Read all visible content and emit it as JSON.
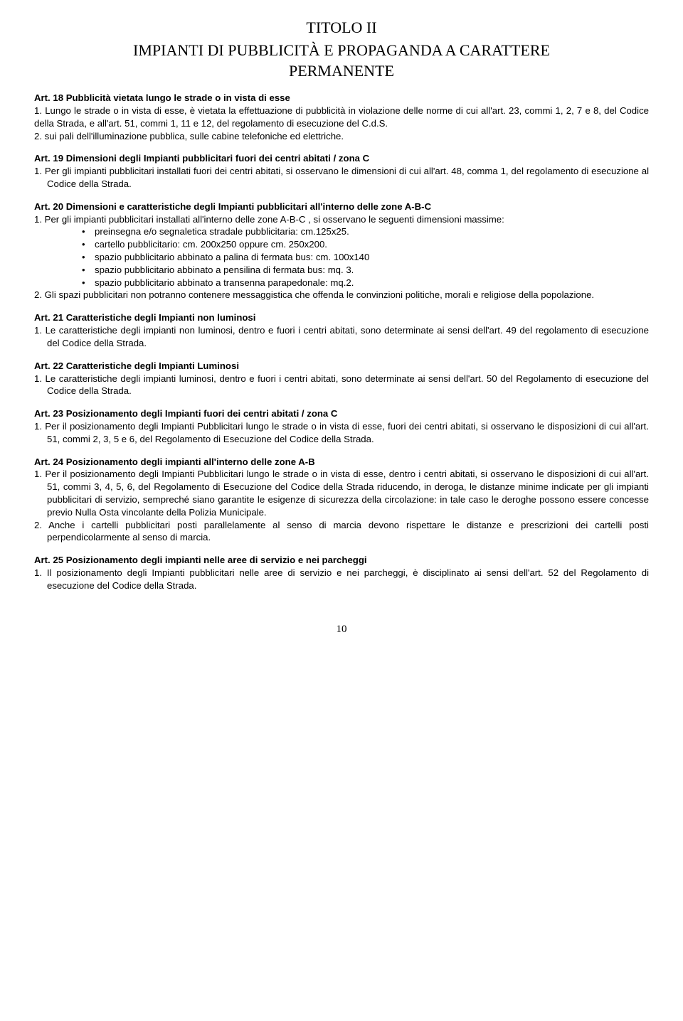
{
  "title": {
    "line1": "TITOLO II",
    "line2": "IMPIANTI DI PUBBLICITÀ E PROPAGANDA A CARATTERE",
    "line3": "PERMANENTE"
  },
  "art18": {
    "heading": "Art. 18 Pubblicità vietata lungo le strade o in vista di esse",
    "p1": "1. Lungo le strade o in vista di esse, è vietata la effettuazione di pubblicità in violazione delle norme di cui all'art. 23, commi 1, 2, 7 e 8, del Codice della Strada, e all'art. 51, commi 1, 11 e 12, del regolamento di esecuzione del C.d.S.",
    "p2": "2. sui pali dell'illuminazione pubblica, sulle cabine telefoniche ed elettriche."
  },
  "art19": {
    "heading": "Art. 19 Dimensioni degli Impianti pubblicitari fuori dei centri abitati / zona C",
    "p1": "1. Per gli impianti pubblicitari installati fuori dei centri abitati, si osservano le dimensioni di cui all'art. 48, comma 1, del regolamento di esecuzione al Codice della Strada."
  },
  "art20": {
    "heading": "Art. 20 Dimensioni e caratteristiche degli Impianti pubblicitari all'interno delle zone A-B-C",
    "p1": "1. Per gli impianti pubblicitari installati all'interno delle zone A-B-C , si osservano le seguenti dimensioni massime:",
    "bullets": [
      "preinsegna e/o segnaletica stradale pubblicitaria: cm.125x25.",
      "cartello pubblicitario: cm. 200x250 oppure cm. 250x200.",
      "spazio pubblicitario abbinato a palina di fermata bus: cm. 100x140",
      "spazio pubblicitario abbinato a pensilina di fermata bus: mq. 3.",
      "spazio pubblicitario abbinato a transenna parapedonale: mq.2."
    ],
    "p2": "2. Gli spazi pubblicitari non potranno contenere messaggistica che offenda le convinzioni politiche, morali e religiose della popolazione."
  },
  "art21": {
    "heading": "Art. 21 Caratteristiche degli Impianti non luminosi",
    "p1": "1. Le caratteristiche degli impianti non luminosi, dentro e fuori i centri abitati, sono determinate ai sensi dell'art. 49 del regolamento di esecuzione del Codice della Strada."
  },
  "art22": {
    "heading": "Art. 22 Caratteristiche degli Impianti Luminosi",
    "p1": "1. Le caratteristiche degli impianti luminosi, dentro e fuori i centri abitati, sono determinate ai sensi dell'art. 50 del Regolamento di esecuzione del Codice della Strada."
  },
  "art23": {
    "heading": "Art. 23 Posizionamento degli Impianti fuori dei centri abitati / zona C",
    "p1": "1. Per il posizionamento degli Impianti Pubblicitari lungo le strade o in vista di esse, fuori dei centri abitati, si osservano le disposizioni di cui all'art. 51, commi 2, 3, 5 e 6, del Regolamento di Esecuzione del Codice della Strada."
  },
  "art24": {
    "heading": "Art. 24 Posizionamento degli impianti all'interno delle zone A-B",
    "p1": "1. Per il posizionamento degli Impianti Pubblicitari lungo le strade o in vista di esse, dentro i centri abitati, si osservano le disposizioni di cui all'art. 51, commi 3, 4, 5, 6, del Regolamento di Esecuzione del Codice della Strada riducendo, in deroga, le distanze minime indicate per gli impianti pubblicitari di servizio, sempreché siano garantite le esigenze di sicurezza della circolazione: in tale caso le deroghe possono essere concesse previo Nulla Osta vincolante della Polizia Municipale.",
    "p2": "2. Anche i cartelli pubblicitari posti parallelamente al senso di marcia devono rispettare le distanze e prescrizioni dei cartelli posti perpendicolarmente al senso di marcia."
  },
  "art25": {
    "heading": "Art. 25 Posizionamento degli impianti nelle aree di servizio e nei parcheggi",
    "p1": "1. Il posizionamento degli Impianti pubblicitari nelle aree di servizio e nei parcheggi, è disciplinato ai sensi dell'art. 52 del Regolamento di esecuzione del Codice della Strada."
  },
  "pageNumber": "10"
}
